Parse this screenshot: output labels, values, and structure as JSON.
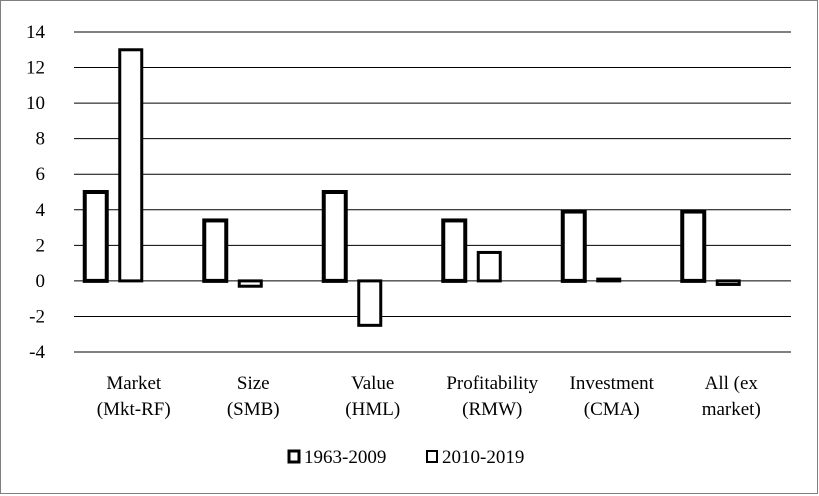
{
  "chart_data": {
    "type": "bar",
    "categories": [
      [
        "Market",
        "(Mkt-RF)"
      ],
      [
        "Size",
        "(SMB)"
      ],
      [
        "Value",
        "(HML)"
      ],
      [
        "Profitability",
        "(RMW)"
      ],
      [
        "Investment",
        "(CMA)"
      ],
      [
        "All (ex",
        "market)"
      ]
    ],
    "series": [
      {
        "name": "1963-2009",
        "values": [
          5.0,
          3.4,
          5.0,
          3.4,
          3.9,
          3.9
        ]
      },
      {
        "name": "2010-2019",
        "values": [
          13.0,
          -0.3,
          -2.5,
          1.6,
          0.1,
          -0.2
        ]
      }
    ],
    "ylim": [
      -4,
      14
    ],
    "yticks": [
      -4,
      -2,
      0,
      2,
      4,
      6,
      8,
      10,
      12,
      14
    ],
    "grid": true,
    "legend_position": "bottom",
    "colors": {
      "bar_fill": "#ffffff",
      "bar_stroke": "#000000",
      "grid": "#000000"
    }
  }
}
